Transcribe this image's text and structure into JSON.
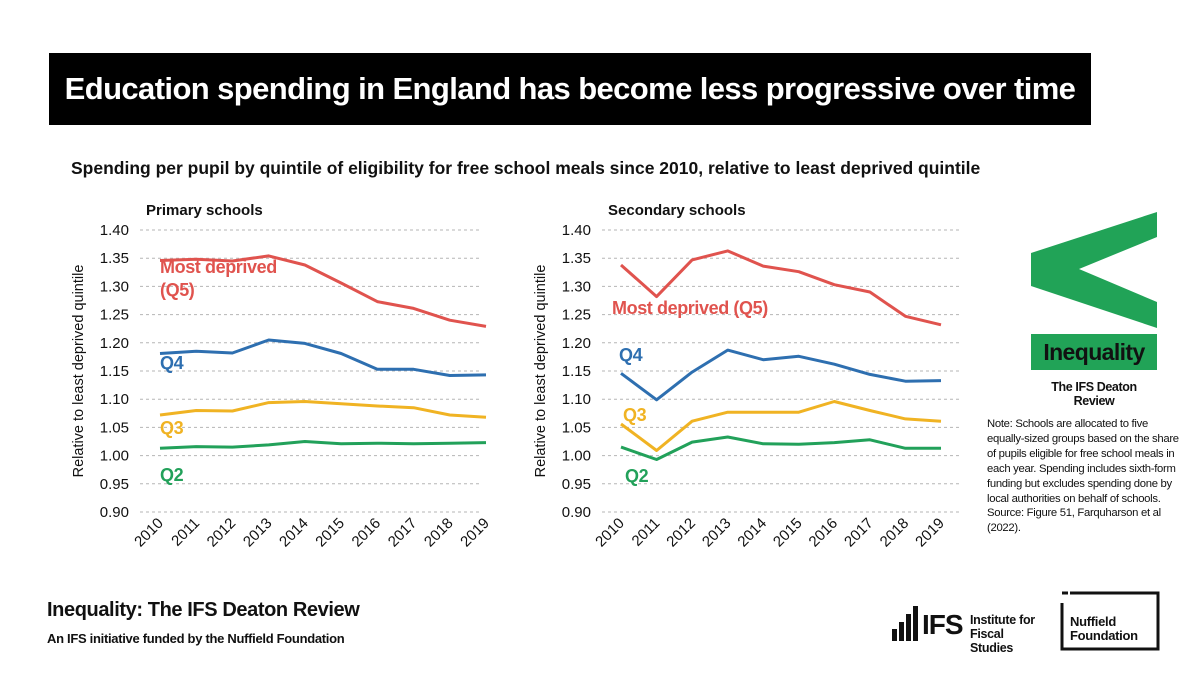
{
  "title": "Education spending in England has become less progressive over time",
  "subtitle": "Spending per pupil by quintile of eligibility for free school meals since 2010, relative to least deprived quintile",
  "colors": {
    "q5": "#e0534e",
    "q4": "#2e6fb0",
    "q3": "#f0b323",
    "q2": "#22a15a",
    "accent_green": "#21a357"
  },
  "chart_data": [
    {
      "type": "line",
      "title": "Primary schools",
      "ylabel": "Relative to least deprived quintile",
      "ylim": [
        0.9,
        1.4
      ],
      "yticks": [
        "0.90",
        "0.95",
        "1.00",
        "1.05",
        "1.10",
        "1.15",
        "1.20",
        "1.25",
        "1.30",
        "1.35",
        "1.40"
      ],
      "x": [
        "2010",
        "2011",
        "2012",
        "2013",
        "2014",
        "2015",
        "2016",
        "2017",
        "2018",
        "2019"
      ],
      "grid": true,
      "series": [
        {
          "name": "Most deprived (Q5)",
          "label_lines": [
            "Most deprived",
            "(Q5)"
          ],
          "color": "#e0534e",
          "values": [
            1.346,
            1.348,
            1.345,
            1.354,
            1.338,
            1.306,
            1.273,
            1.261,
            1.24,
            1.229
          ]
        },
        {
          "name": "Q4",
          "label_lines": [
            "Q4"
          ],
          "color": "#2e6fb0",
          "values": [
            1.181,
            1.185,
            1.182,
            1.205,
            1.199,
            1.181,
            1.153,
            1.153,
            1.142,
            1.143
          ]
        },
        {
          "name": "Q3",
          "label_lines": [
            "Q3"
          ],
          "color": "#f0b323",
          "values": [
            1.072,
            1.08,
            1.079,
            1.094,
            1.096,
            1.092,
            1.088,
            1.085,
            1.072,
            1.068
          ]
        },
        {
          "name": "Q2",
          "label_lines": [
            "Q2"
          ],
          "color": "#22a15a",
          "values": [
            1.013,
            1.016,
            1.015,
            1.019,
            1.025,
            1.021,
            1.022,
            1.021,
            1.022,
            1.023
          ]
        }
      ]
    },
    {
      "type": "line",
      "title": "Secondary schools",
      "ylabel": "Relative to least deprived quintile",
      "ylim": [
        0.9,
        1.4
      ],
      "yticks": [
        "0.90",
        "0.95",
        "1.00",
        "1.05",
        "1.10",
        "1.15",
        "1.20",
        "1.25",
        "1.30",
        "1.35",
        "1.40"
      ],
      "x": [
        "2010",
        "2011",
        "2012",
        "2013",
        "2014",
        "2015",
        "2016",
        "2017",
        "2018",
        "2019"
      ],
      "grid": true,
      "series": [
        {
          "name": "Most deprived (Q5)",
          "label_lines": [
            "Most deprived (Q5)"
          ],
          "color": "#e0534e",
          "values": [
            1.338,
            1.282,
            1.347,
            1.363,
            1.336,
            1.326,
            1.303,
            1.29,
            1.247,
            1.232
          ]
        },
        {
          "name": "Q4",
          "label_lines": [
            "Q4"
          ],
          "color": "#2e6fb0",
          "values": [
            1.146,
            1.099,
            1.148,
            1.187,
            1.17,
            1.176,
            1.162,
            1.144,
            1.132,
            1.133
          ]
        },
        {
          "name": "Q3",
          "label_lines": [
            "Q3"
          ],
          "color": "#f0b323",
          "values": [
            1.056,
            1.009,
            1.061,
            1.077,
            1.077,
            1.077,
            1.096,
            1.08,
            1.065,
            1.061
          ]
        },
        {
          "name": "Q2",
          "label_lines": [
            "Q2"
          ],
          "color": "#22a15a",
          "values": [
            1.015,
            0.993,
            1.024,
            1.033,
            1.021,
            1.02,
            1.023,
            1.028,
            1.013,
            1.013
          ]
        }
      ]
    }
  ],
  "brand": {
    "logo_label": "Inequality",
    "logo_sub": "The IFS Deaton Review",
    "note": "Note: Schools are allocated to five equally-sized groups based on the share of pupils eligible for free school meals in each year. Spending includes sixth-form funding but excludes spending done by local authorities on behalf of schools. Source: Figure 51, Farquharson et al (2022).",
    "footer_title": "Inequality: The IFS Deaton Review",
    "footer_sub": "An IFS initiative funded by the Nuffield Foundation",
    "ifs_abbr": "IFS",
    "ifs_name_line1": "Institute for",
    "ifs_name_line2": "Fiscal Studies",
    "nf_line1": "Nuffield",
    "nf_line2": "Foundation"
  }
}
